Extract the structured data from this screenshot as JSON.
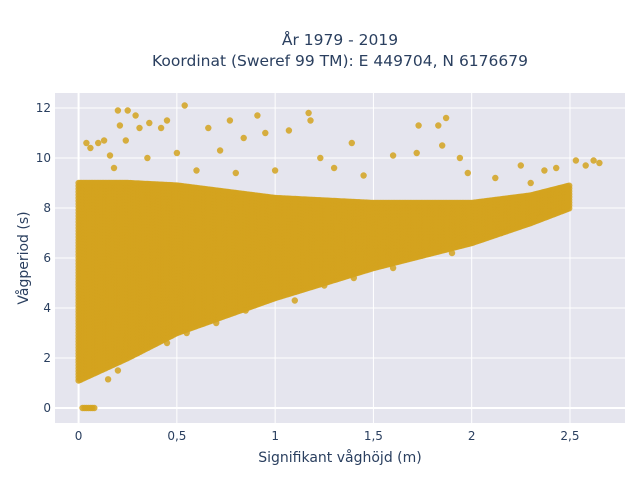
{
  "chart_data": {
    "type": "scatter",
    "title": "År 1979 - 2019",
    "subtitle": "Koordinat (Sweref 99 TM): E 449704, N 6176679",
    "xlabel": "Signifikant våghöjd (m)",
    "ylabel": "Vågperiod (s)",
    "xlim": [
      -0.12,
      2.78
    ],
    "ylim": [
      -0.6,
      12.6
    ],
    "x_ticks": [
      0,
      0.5,
      1,
      1.5,
      2,
      2.5
    ],
    "x_tick_labels": [
      "0",
      "0,5",
      "1",
      "1,5",
      "2",
      "2,5"
    ],
    "y_ticks": [
      0,
      2,
      4,
      6,
      8,
      10,
      12
    ],
    "y_tick_labels": [
      "0",
      "2",
      "4",
      "6",
      "8",
      "10",
      "12"
    ],
    "grid": true,
    "legend": "none",
    "marker_color": "#d4a31f",
    "background_color": "#e5e5ee",
    "series": [
      {
        "point_cloud_bounds": {
          "x": [
            0.0,
            0.25,
            0.5,
            1.0,
            1.5,
            2.0,
            2.3,
            2.5
          ],
          "y_lower": [
            1.1,
            2.0,
            3.0,
            4.4,
            5.6,
            6.6,
            7.4,
            8.0
          ],
          "y_upper": [
            9.0,
            9.0,
            8.9,
            8.4,
            8.2,
            8.2,
            8.5,
            8.9
          ]
        },
        "points": [
          {
            "x": 0.02,
            "y": 0
          },
          {
            "x": 0.03,
            "y": 0
          },
          {
            "x": 0.04,
            "y": 0
          },
          {
            "x": 0.05,
            "y": 0
          },
          {
            "x": 0.06,
            "y": 0
          },
          {
            "x": 0.07,
            "y": 0
          },
          {
            "x": 0.08,
            "y": 0
          },
          {
            "x": 0.2,
            "y": 11.9
          },
          {
            "x": 0.25,
            "y": 11.9
          },
          {
            "x": 0.29,
            "y": 11.7
          },
          {
            "x": 0.36,
            "y": 11.4
          },
          {
            "x": 0.45,
            "y": 11.5
          },
          {
            "x": 0.54,
            "y": 12.1
          },
          {
            "x": 0.21,
            "y": 11.3
          },
          {
            "x": 0.31,
            "y": 11.2
          },
          {
            "x": 0.24,
            "y": 10.7
          },
          {
            "x": 0.42,
            "y": 11.2
          },
          {
            "x": 0.66,
            "y": 11.2
          },
          {
            "x": 0.77,
            "y": 11.5
          },
          {
            "x": 0.84,
            "y": 10.8
          },
          {
            "x": 0.91,
            "y": 11.7
          },
          {
            "x": 0.72,
            "y": 10.3
          },
          {
            "x": 0.95,
            "y": 11.0
          },
          {
            "x": 1.17,
            "y": 11.8
          },
          {
            "x": 1.07,
            "y": 11.1
          },
          {
            "x": 1.18,
            "y": 11.5
          },
          {
            "x": 1.39,
            "y": 10.6
          },
          {
            "x": 1.73,
            "y": 11.3
          },
          {
            "x": 1.83,
            "y": 11.3
          },
          {
            "x": 1.87,
            "y": 11.6
          },
          {
            "x": 1.85,
            "y": 10.5
          },
          {
            "x": 1.94,
            "y": 10.0
          },
          {
            "x": 1.72,
            "y": 10.2
          },
          {
            "x": 1.6,
            "y": 10.1
          },
          {
            "x": 1.23,
            "y": 10.0
          },
          {
            "x": 2.53,
            "y": 9.9
          },
          {
            "x": 2.58,
            "y": 9.7
          },
          {
            "x": 2.62,
            "y": 9.9
          },
          {
            "x": 2.65,
            "y": 9.8
          },
          {
            "x": 2.43,
            "y": 9.6
          },
          {
            "x": 2.37,
            "y": 9.5
          },
          {
            "x": 2.25,
            "y": 9.7
          },
          {
            "x": 0.04,
            "y": 10.6
          },
          {
            "x": 0.06,
            "y": 10.4
          },
          {
            "x": 0.1,
            "y": 10.6
          },
          {
            "x": 0.13,
            "y": 10.7
          },
          {
            "x": 0.16,
            "y": 10.1
          },
          {
            "x": 0.18,
            "y": 9.6
          },
          {
            "x": 0.35,
            "y": 10.0
          },
          {
            "x": 0.5,
            "y": 10.2
          },
          {
            "x": 0.6,
            "y": 9.5
          },
          {
            "x": 0.8,
            "y": 9.4
          },
          {
            "x": 1.0,
            "y": 9.5
          },
          {
            "x": 1.3,
            "y": 9.6
          },
          {
            "x": 1.45,
            "y": 9.3
          },
          {
            "x": 1.98,
            "y": 9.4
          },
          {
            "x": 2.12,
            "y": 9.2
          },
          {
            "x": 2.3,
            "y": 9.0
          },
          {
            "x": 0.15,
            "y": 1.15
          },
          {
            "x": 0.2,
            "y": 1.5
          },
          {
            "x": 0.3,
            "y": 2.2
          },
          {
            "x": 0.45,
            "y": 2.6
          },
          {
            "x": 0.55,
            "y": 3.0
          },
          {
            "x": 0.7,
            "y": 3.4
          },
          {
            "x": 0.85,
            "y": 3.9
          },
          {
            "x": 1.1,
            "y": 4.3
          },
          {
            "x": 1.25,
            "y": 4.9
          },
          {
            "x": 1.4,
            "y": 5.2
          },
          {
            "x": 1.6,
            "y": 5.6
          },
          {
            "x": 1.9,
            "y": 6.2
          },
          {
            "x": 2.15,
            "y": 7.0
          },
          {
            "x": 2.35,
            "y": 7.6
          }
        ]
      }
    ]
  }
}
